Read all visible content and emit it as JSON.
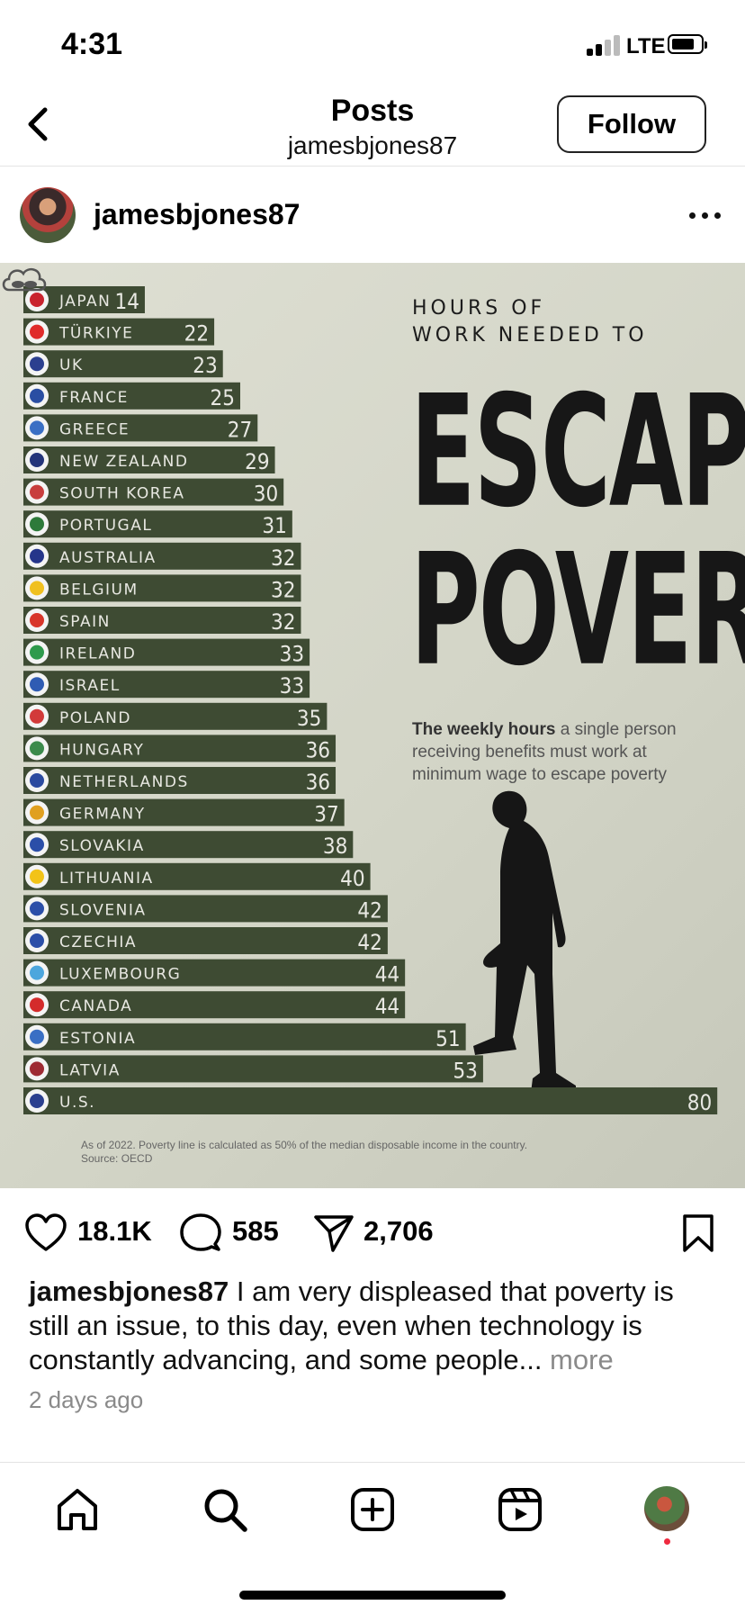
{
  "status_bar": {
    "time": "4:31",
    "network": "LTE"
  },
  "header": {
    "title": "Posts",
    "subtitle": "jamesbjones87",
    "follow_label": "Follow"
  },
  "post": {
    "username": "jamesbjones87",
    "likes": "18.1K",
    "comments": "585",
    "shares": "2,706",
    "caption_user": "jamesbjones87",
    "caption_text": " I am very displeased that poverty is still an issue, to this day, even when technology is constantly advancing, and some people...",
    "more_label": " more",
    "time_ago": "2 days ago"
  },
  "poster": {
    "heading_line1": "HOURS OF",
    "heading_line2": "WORK NEEDED TO",
    "title_line1": "ESCAPE",
    "title_line2": "POVERTY",
    "desc_bold": "The weekly hours",
    "desc_rest": " a single person receiving benefits must work at minimum wage to escape poverty",
    "note_line1": "As of 2022. Poverty line is calculated as 50% of the median disposable income in the country.",
    "note_line2": "Source: OECD",
    "bar_color": "#3e4b33"
  },
  "chart_data": {
    "type": "bar",
    "orientation": "horizontal",
    "title": "HOURS OF WORK NEEDED TO ESCAPE POVERTY",
    "categories": [
      "JAPAN",
      "TÜRKIYE",
      "UK",
      "FRANCE",
      "GREECE",
      "NEW ZEALAND",
      "SOUTH KOREA",
      "PORTUGAL",
      "AUSTRALIA",
      "BELGIUM",
      "SPAIN",
      "IRELAND",
      "ISRAEL",
      "POLAND",
      "HUNGARY",
      "NETHERLANDS",
      "GERMANY",
      "SLOVAKIA",
      "LITHUANIA",
      "SLOVENIA",
      "CZECHIA",
      "LUXEMBOURG",
      "CANADA",
      "ESTONIA",
      "LATVIA",
      "U.S."
    ],
    "values": [
      14,
      22,
      23,
      25,
      27,
      29,
      30,
      31,
      32,
      32,
      32,
      33,
      33,
      35,
      36,
      36,
      37,
      38,
      40,
      42,
      42,
      44,
      44,
      51,
      53,
      80
    ],
    "flag_colors": [
      "#c9232e",
      "#e02b2b",
      "#2b3f8f",
      "#2a4ea3",
      "#3a6fc4",
      "#24347a",
      "#c83d3d",
      "#2d7a3a",
      "#25358a",
      "#f0c020",
      "#d8352a",
      "#2e9a4c",
      "#2f5cb3",
      "#d23a3a",
      "#3c8a4c",
      "#2b4aa0",
      "#e0a020",
      "#2b4ea8",
      "#f2c318",
      "#2b4ea8",
      "#2b4ea8",
      "#4da6dd",
      "#d42b2b",
      "#3a6fc4",
      "#9e2a33",
      "#2b3f8f"
    ]
  },
  "nav": {
    "icons": [
      "home-icon",
      "search-icon",
      "create-icon",
      "reels-icon",
      "profile-icon"
    ]
  }
}
